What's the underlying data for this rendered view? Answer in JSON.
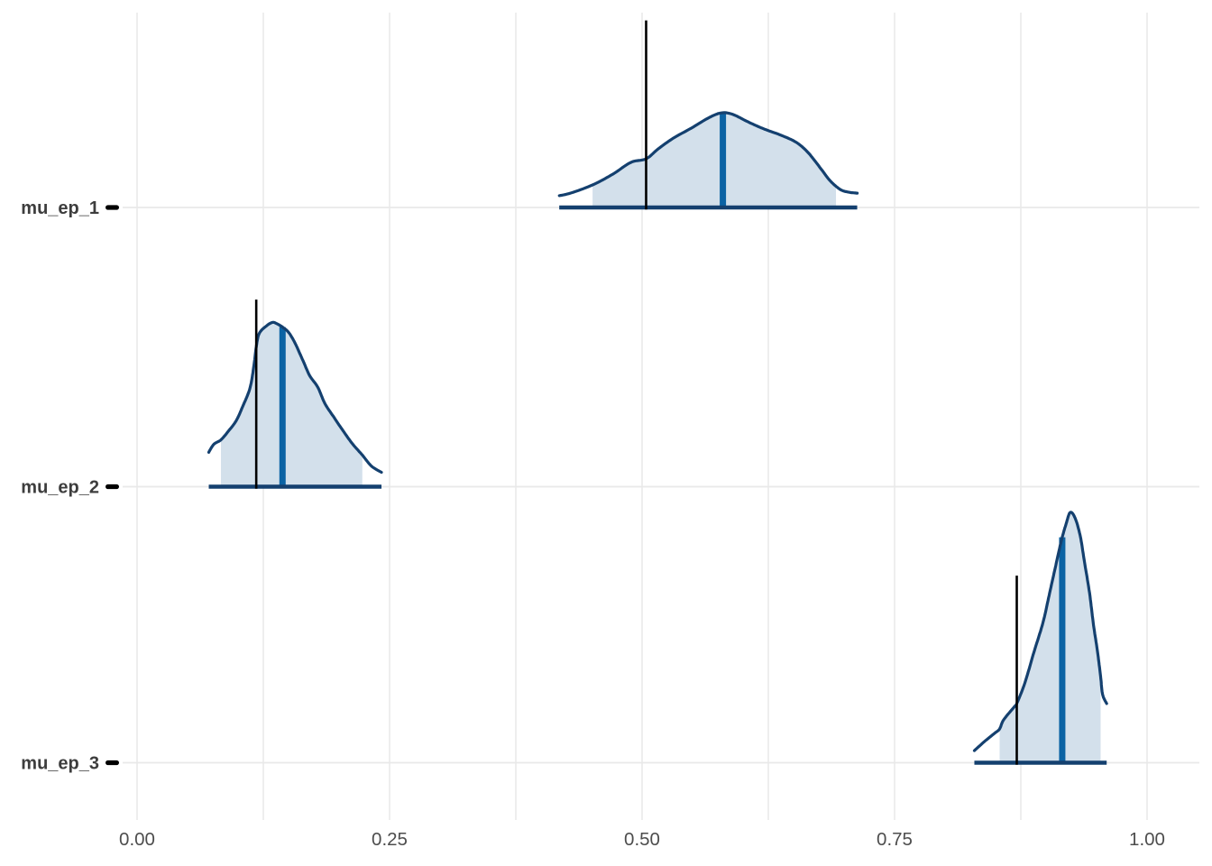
{
  "chart_data": {
    "type": "area",
    "subtype": "density-ridgeline-with-intervals",
    "title": "",
    "xlabel": "",
    "ylabel": "",
    "legend": "none",
    "grid": {
      "vertical_major": true,
      "vertical_minor": true,
      "horizontal_major": true
    },
    "x_axis": {
      "tick_labels": [
        "0.00",
        "0.25",
        "0.50",
        "0.75",
        "1.00"
      ],
      "tick_values": [
        0,
        0.25,
        0.5,
        0.75,
        1.0
      ],
      "minor_step": 0.125,
      "range": [
        -0.014,
        1.052
      ]
    },
    "y_axis": {
      "categories": [
        "mu_ep_1",
        "mu_ep_2",
        "mu_ep_3"
      ]
    },
    "reference_line_height": 0.68,
    "series": [
      {
        "name": "mu_ep_1",
        "median": 0.58,
        "reference_value": 0.504,
        "shaded_interval": [
          0.451,
          0.692
        ],
        "density": [
          [
            0.418,
            0.043
          ],
          [
            0.429,
            0.052
          ],
          [
            0.451,
            0.082
          ],
          [
            0.471,
            0.121
          ],
          [
            0.489,
            0.164
          ],
          [
            0.504,
            0.177
          ],
          [
            0.516,
            0.213
          ],
          [
            0.531,
            0.252
          ],
          [
            0.549,
            0.289
          ],
          [
            0.567,
            0.328
          ],
          [
            0.579,
            0.344
          ],
          [
            0.59,
            0.338
          ],
          [
            0.605,
            0.311
          ],
          [
            0.621,
            0.285
          ],
          [
            0.638,
            0.262
          ],
          [
            0.653,
            0.236
          ],
          [
            0.665,
            0.197
          ],
          [
            0.677,
            0.141
          ],
          [
            0.686,
            0.098
          ],
          [
            0.696,
            0.066
          ],
          [
            0.704,
            0.056
          ],
          [
            0.713,
            0.052
          ]
        ]
      },
      {
        "name": "mu_ep_2",
        "median": 0.144,
        "reference_value": 0.118,
        "shaded_interval": [
          0.083,
          0.223
        ],
        "density": [
          [
            0.071,
            0.125
          ],
          [
            0.076,
            0.154
          ],
          [
            0.083,
            0.17
          ],
          [
            0.09,
            0.2
          ],
          [
            0.098,
            0.239
          ],
          [
            0.105,
            0.295
          ],
          [
            0.112,
            0.361
          ],
          [
            0.116,
            0.449
          ],
          [
            0.118,
            0.508
          ],
          [
            0.121,
            0.557
          ],
          [
            0.128,
            0.584
          ],
          [
            0.134,
            0.597
          ],
          [
            0.138,
            0.593
          ],
          [
            0.144,
            0.58
          ],
          [
            0.15,
            0.561
          ],
          [
            0.156,
            0.525
          ],
          [
            0.161,
            0.485
          ],
          [
            0.165,
            0.452
          ],
          [
            0.171,
            0.403
          ],
          [
            0.179,
            0.361
          ],
          [
            0.186,
            0.302
          ],
          [
            0.195,
            0.252
          ],
          [
            0.204,
            0.203
          ],
          [
            0.213,
            0.157
          ],
          [
            0.223,
            0.115
          ],
          [
            0.232,
            0.075
          ],
          [
            0.242,
            0.052
          ]
        ]
      },
      {
        "name": "mu_ep_3",
        "median": 0.916,
        "reference_value": 0.871,
        "shaded_interval": [
          0.854,
          0.954
        ],
        "density": [
          [
            0.829,
            0.044
          ],
          [
            0.839,
            0.077
          ],
          [
            0.849,
            0.107
          ],
          [
            0.854,
            0.123
          ],
          [
            0.858,
            0.156
          ],
          [
            0.869,
            0.205
          ],
          [
            0.871,
            0.215
          ],
          [
            0.879,
            0.29
          ],
          [
            0.888,
            0.402
          ],
          [
            0.897,
            0.51
          ],
          [
            0.903,
            0.608
          ],
          [
            0.909,
            0.707
          ],
          [
            0.915,
            0.805
          ],
          [
            0.92,
            0.87
          ],
          [
            0.924,
            0.91
          ],
          [
            0.929,
            0.887
          ],
          [
            0.934,
            0.821
          ],
          [
            0.938,
            0.73
          ],
          [
            0.943,
            0.618
          ],
          [
            0.947,
            0.5
          ],
          [
            0.951,
            0.402
          ],
          [
            0.954,
            0.313
          ],
          [
            0.956,
            0.248
          ],
          [
            0.96,
            0.215
          ]
        ]
      }
    ]
  },
  "colors": {
    "background": "#ffffff",
    "density_fill": "#d3e0eb",
    "density_outline": "#14406f",
    "median_bar": "#0b63a4",
    "reference_line": "#000000",
    "gridline": "#e9e9e9",
    "x_tick_label": "#4d4d4d",
    "y_tick_label": "#3d3d3d",
    "y_tick_dash": "#000000"
  }
}
